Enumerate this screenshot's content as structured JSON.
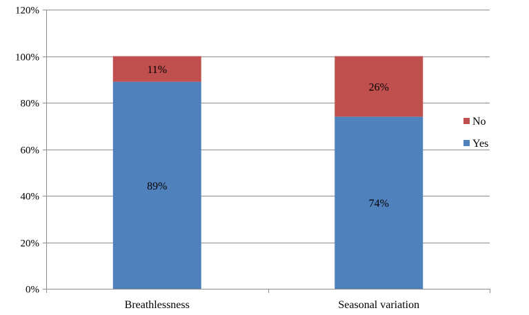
{
  "chart_data": {
    "type": "bar",
    "stacked": true,
    "percent": true,
    "categories": [
      "Breathlessness",
      "Seasonal variation"
    ],
    "series": [
      {
        "name": "Yes",
        "values": [
          89,
          74
        ],
        "color": "#4F81BD",
        "labels": [
          "89%",
          "74%"
        ]
      },
      {
        "name": "No",
        "values": [
          11,
          26
        ],
        "color": "#C0504D",
        "labels": [
          "11%",
          "26%"
        ]
      }
    ],
    "title": "",
    "xlabel": "",
    "ylabel": "",
    "ylim": [
      0,
      120
    ],
    "yticks": [
      0,
      20,
      40,
      60,
      80,
      100,
      120
    ],
    "ytick_labels": [
      "0%",
      "20%",
      "40%",
      "60%",
      "80%",
      "100%",
      "120%"
    ],
    "grid": true,
    "legend": {
      "position": "right",
      "items": [
        {
          "name": "No",
          "color": "#C0504D"
        },
        {
          "name": "Yes",
          "color": "#4F81BD"
        }
      ]
    }
  }
}
